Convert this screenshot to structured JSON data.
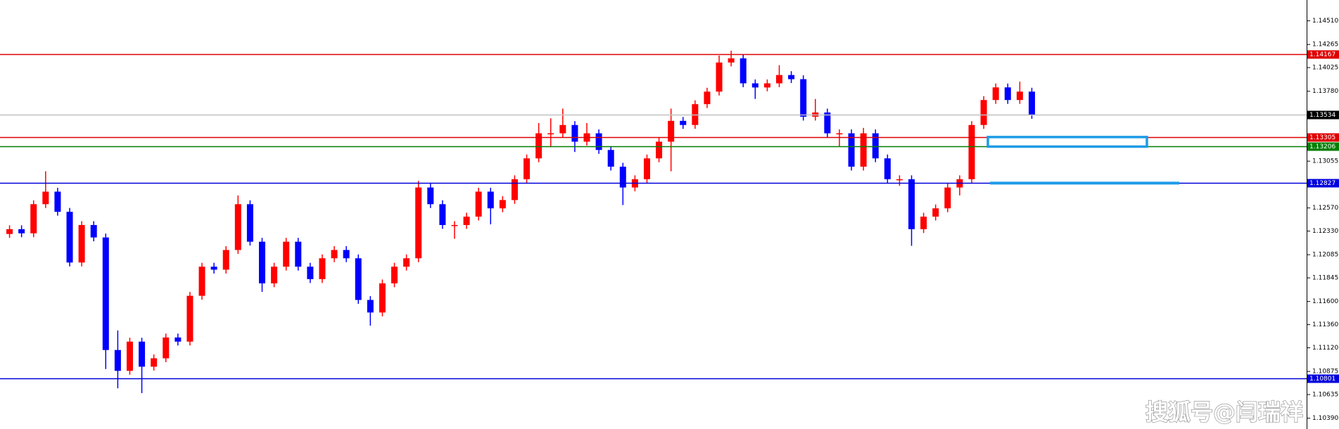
{
  "chart_data": {
    "type": "candlestick",
    "ylim": [
      1.10278,
      1.14726
    ],
    "yticks": [
      {
        "value": 1.1451,
        "label": "1.14510"
      },
      1.14265,
      1.14025,
      {
        "value": 1.1378,
        "label": "1.13780"
      },
      1.13055,
      {
        "value": 1.1257,
        "label": "1.12570"
      },
      {
        "value": 1.1233,
        "label": "1.12330"
      },
      1.12085,
      1.11845,
      {
        "value": 1.116,
        "label": "1.11600"
      },
      {
        "value": 1.1136,
        "label": "1.11360"
      },
      {
        "value": 1.1112,
        "label": "1.11120"
      },
      1.10875,
      1.10635,
      {
        "value": 1.1039,
        "label": "1.10390"
      }
    ],
    "up_color": "#ff0000",
    "down_color": "#0000ff",
    "open": [
      1.123,
      1.1235,
      1.12307,
      1.12609,
      1.12739,
      1.1253,
      1.12004,
      1.12393,
      1.12264,
      1.11097,
      1.10881,
      1.11184,
      1.10924,
      1.11011,
      1.11227,
      1.11184,
      1.11659,
      1.11961,
      1.1193,
      1.12134,
      1.12609,
      1.1222,
      1.11788,
      1.11961,
      1.1222,
      1.11961,
      1.11832,
      1.12048,
      1.12134,
      1.12048,
      1.11616,
      1.11486,
      1.11788,
      1.11961,
      1.12048,
      1.12782,
      1.12609,
      1.12393,
      1.12393,
      1.1248,
      1.12739,
      1.12566,
      1.12652,
      1.12868,
      1.13084,
      1.13344,
      1.13344,
      1.1343,
      1.13257,
      1.13344,
      1.13171,
      1.12998,
      1.12782,
      1.12868,
      1.13084,
      1.13257,
      1.13473,
      1.1343,
      1.13646,
      1.13776,
      1.14078,
      1.14121,
      1.13862,
      1.13819,
      1.13862,
      1.13948,
      1.13905,
      1.13516,
      1.1356,
      1.13344,
      1.13344,
      1.12998,
      1.13344,
      1.13084,
      1.12868,
      1.12868,
      1.1235,
      1.1248,
      1.12566,
      1.12782,
      1.12868,
      1.1343,
      1.13689,
      1.1382,
      1.13689,
      1.13776
    ],
    "high": [
      1.1239,
      1.1239,
      1.12649,
      1.1295,
      1.12779,
      1.1257,
      1.12433,
      1.12433,
      1.12304,
      1.113,
      1.11224,
      1.11224,
      1.11051,
      1.11267,
      1.11267,
      1.11699,
      1.12001,
      1.12001,
      1.12174,
      1.127,
      1.12649,
      1.1226,
      1.12001,
      1.1226,
      1.1226,
      1.12001,
      1.12088,
      1.12174,
      1.12174,
      1.12088,
      1.11656,
      1.11828,
      1.12001,
      1.12088,
      1.1285,
      1.12822,
      1.12649,
      1.12433,
      1.1252,
      1.12779,
      1.12779,
      1.12692,
      1.12908,
      1.13124,
      1.1345,
      1.135,
      1.136,
      1.1347,
      1.1345,
      1.13384,
      1.13211,
      1.13038,
      1.12908,
      1.13124,
      1.13297,
      1.136,
      1.13513,
      1.13686,
      1.13816,
      1.1415,
      1.142,
      1.14161,
      1.13902,
      1.13902,
      1.1405,
      1.13988,
      1.13945,
      1.137,
      1.136,
      1.13384,
      1.13384,
      1.134,
      1.13384,
      1.13124,
      1.12908,
      1.12908,
      1.1252,
      1.12606,
      1.12822,
      1.12908,
      1.1347,
      1.13729,
      1.1386,
      1.1386,
      1.1388,
      1.13816
    ],
    "low": [
      1.1226,
      1.12267,
      1.12267,
      1.12569,
      1.1249,
      1.11964,
      1.11964,
      1.12224,
      1.109,
      1.107,
      1.10841,
      1.1065,
      1.10884,
      1.10971,
      1.11144,
      1.11144,
      1.11619,
      1.1189,
      1.1189,
      1.12094,
      1.1218,
      1.117,
      1.11748,
      1.11921,
      1.11921,
      1.11792,
      1.11792,
      1.12008,
      1.12008,
      1.11576,
      1.1135,
      1.11446,
      1.11748,
      1.11921,
      1.12008,
      1.12569,
      1.12353,
      1.1225,
      1.12353,
      1.1244,
      1.124,
      1.12526,
      1.12612,
      1.12828,
      1.13044,
      1.132,
      1.13304,
      1.1315,
      1.13217,
      1.13131,
      1.12958,
      1.126,
      1.12742,
      1.12828,
      1.13044,
      1.1295,
      1.1339,
      1.1339,
      1.13606,
      1.13736,
      1.14038,
      1.13822,
      1.137,
      1.13779,
      1.13822,
      1.13865,
      1.13476,
      1.13476,
      1.13304,
      1.13204,
      1.12958,
      1.12958,
      1.13044,
      1.12828,
      1.128,
      1.12177,
      1.1231,
      1.1244,
      1.12526,
      1.127,
      1.12828,
      1.1339,
      1.13649,
      1.13649,
      1.13649,
      1.13494
    ],
    "close": [
      1.1235,
      1.12307,
      1.12609,
      1.12739,
      1.1253,
      1.12004,
      1.12393,
      1.12264,
      1.11097,
      1.10881,
      1.11184,
      1.10924,
      1.11011,
      1.11227,
      1.11184,
      1.11659,
      1.11961,
      1.1193,
      1.12134,
      1.12609,
      1.1222,
      1.11788,
      1.11961,
      1.1222,
      1.11961,
      1.11832,
      1.12048,
      1.12134,
      1.12048,
      1.11616,
      1.11486,
      1.11788,
      1.11961,
      1.12048,
      1.12782,
      1.12609,
      1.12393,
      1.12393,
      1.1248,
      1.12739,
      1.12566,
      1.12652,
      1.12868,
      1.13084,
      1.13344,
      1.13344,
      1.1343,
      1.13257,
      1.13344,
      1.13171,
      1.12998,
      1.12782,
      1.12868,
      1.13084,
      1.13257,
      1.13473,
      1.1343,
      1.13646,
      1.13776,
      1.14078,
      1.14121,
      1.13862,
      1.13819,
      1.13862,
      1.13948,
      1.13905,
      1.13516,
      1.1356,
      1.13344,
      1.13344,
      1.12998,
      1.13344,
      1.13084,
      1.12868,
      1.12868,
      1.1235,
      1.1248,
      1.12566,
      1.12782,
      1.12868,
      1.1343,
      1.13689,
      1.1382,
      1.13689,
      1.13776,
      1.13534
    ],
    "levels": [
      {
        "value": 1.14167,
        "color": "#e00000"
      },
      {
        "value": 1.13534,
        "color": "#c0c0c0"
      },
      {
        "value": 1.13305,
        "color": "#e00000"
      },
      {
        "value": 1.13206,
        "color": "#008000"
      },
      {
        "value": 1.12827,
        "color": "#0000dd"
      },
      {
        "value": 1.10801,
        "color": "#0000dd"
      }
    ],
    "zone_color": "#1e9be8",
    "watermark": "搜狐号@闫瑞祥"
  }
}
